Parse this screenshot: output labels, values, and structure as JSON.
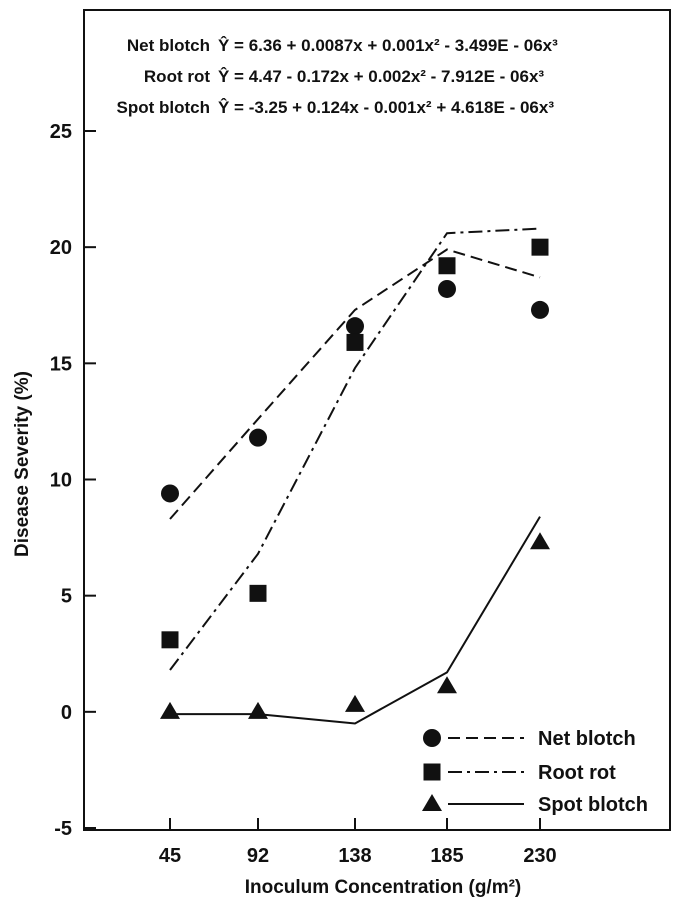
{
  "chart_data": {
    "type": "scatter",
    "xlabel": "Inoculum Concentration (g/m²)",
    "ylabel": "Disease Severity (%)",
    "categories": [
      "45",
      "92",
      "138",
      "185",
      "230"
    ],
    "x": [
      45,
      92,
      138,
      185,
      230
    ],
    "ylim": [
      -5,
      25
    ],
    "yticks": [
      "-5",
      "0",
      "5",
      "10",
      "15",
      "20",
      "25"
    ],
    "grid": false,
    "legend_position": "bottom-right",
    "equations": [
      {
        "name": "Net blotch",
        "text": "Ŷ = 6.36 + 0.0087x + 0.001x² - 3.499E - 06x³"
      },
      {
        "name": "Root rot",
        "text": "Ŷ = 4.47 - 0.172x + 0.002x² - 7.912E - 06x³"
      },
      {
        "name": "Spot blotch",
        "text": "Ŷ = -3.25 + 0.124x - 0.001x² + 4.618E - 06x³"
      }
    ],
    "series": [
      {
        "name": "Net blotch",
        "marker": "circle",
        "line_style": "dashed",
        "observed": [
          9.4,
          11.8,
          16.6,
          18.2,
          17.3
        ],
        "fitted": [
          8.3,
          12.6,
          17.3,
          19.9,
          18.7
        ]
      },
      {
        "name": "Root rot",
        "marker": "square",
        "line_style": "dash-dot",
        "observed": [
          3.1,
          5.1,
          15.9,
          19.2,
          20.0
        ],
        "fitted": [
          1.8,
          6.8,
          14.8,
          20.6,
          20.8
        ]
      },
      {
        "name": "Spot blotch",
        "marker": "triangle",
        "line_style": "solid",
        "observed": [
          0.0,
          0.0,
          0.3,
          1.1,
          7.3
        ],
        "fitted": [
          -0.1,
          -0.1,
          -0.5,
          1.7,
          8.4
        ]
      }
    ]
  }
}
